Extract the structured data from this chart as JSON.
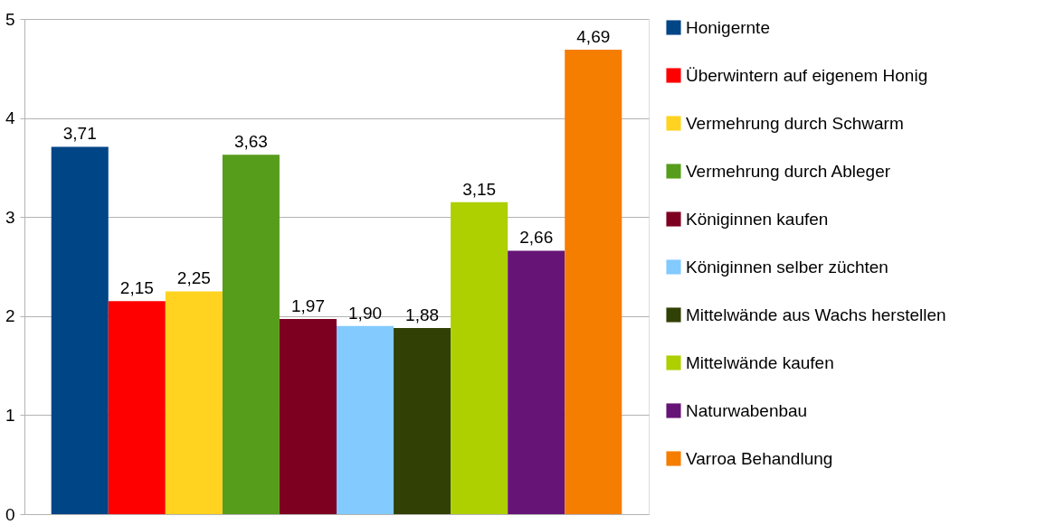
{
  "chart_data": {
    "type": "bar",
    "categories": [
      null
    ],
    "series": [
      {
        "name": "Honigernte",
        "color": "#004586",
        "values": [
          3.71
        ],
        "value_labels": [
          "3,71"
        ]
      },
      {
        "name": "Überwintern auf eigenem Honig",
        "color": "#ff0000",
        "values": [
          2.15
        ],
        "value_labels": [
          "2,15"
        ]
      },
      {
        "name": "Vermehrung durch Schwarm",
        "color": "#ffd320",
        "values": [
          2.25
        ],
        "value_labels": [
          "2,25"
        ]
      },
      {
        "name": "Vermehrung durch Ableger",
        "color": "#579d1c",
        "values": [
          3.63
        ],
        "value_labels": [
          "3,63"
        ]
      },
      {
        "name": "Königinnen kaufen",
        "color": "#7e0021",
        "values": [
          1.97
        ],
        "value_labels": [
          "1,97"
        ]
      },
      {
        "name": "Königinnen selber züchten",
        "color": "#83caff",
        "values": [
          1.9
        ],
        "value_labels": [
          "1,90"
        ]
      },
      {
        "name": "Mittelwände aus Wachs herstellen",
        "color": "#314004",
        "values": [
          1.88
        ],
        "value_labels": [
          "1,88"
        ]
      },
      {
        "name": "Mittelwände kaufen",
        "color": "#aecf00",
        "values": [
          3.15
        ],
        "value_labels": [
          "3,15"
        ]
      },
      {
        "name": "Naturwabenbau",
        "color": "#661577",
        "values": [
          2.66
        ],
        "value_labels": [
          "2,66"
        ]
      },
      {
        "name": "Varroa Behandlung",
        "color": "#f57d00",
        "values": [
          4.69
        ],
        "value_labels": [
          "4,69"
        ]
      }
    ],
    "ylim": [
      0,
      5
    ],
    "yticks": [
      0,
      1,
      2,
      3,
      4,
      5
    ],
    "grid": "y",
    "legend": "right",
    "tick_labels": "y"
  }
}
